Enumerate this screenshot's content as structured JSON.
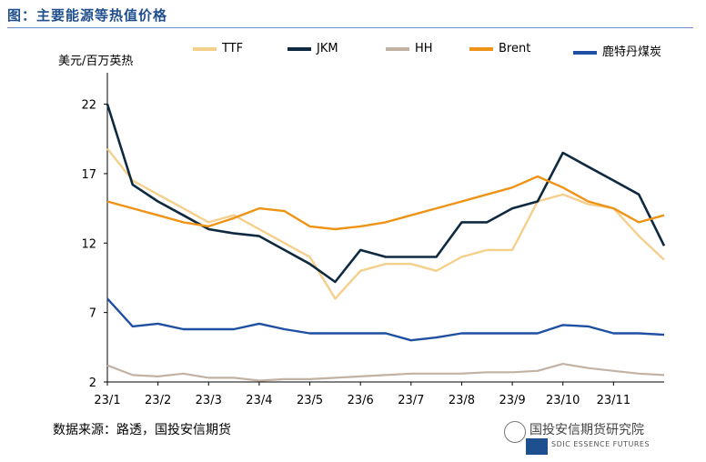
{
  "figure": {
    "title": "图：主要能源等热值价格"
  },
  "source_note": "数据来源：路透，国投安信期货",
  "watermark": {
    "text": "国投安信期货研究院",
    "sub": "SDIC ESSENCE FUTURES",
    "logo_icon": "wechat-icon"
  },
  "chart_data": {
    "type": "line",
    "ylabel": "美元/百万英热",
    "ylim": [
      2,
      24
    ],
    "yticks": [
      2,
      7,
      12,
      17,
      22
    ],
    "x_labels": [
      "23/1",
      "23/2",
      "23/3",
      "23/4",
      "23/5",
      "23/6",
      "23/7",
      "23/8",
      "23/9",
      "23/10",
      "23/11"
    ],
    "x": [
      "23/1",
      "23/1.5",
      "23/2",
      "23/2.5",
      "23/3",
      "23/3.5",
      "23/4",
      "23/4.5",
      "23/5",
      "23/5.5",
      "23/6",
      "23/6.5",
      "23/7",
      "23/7.5",
      "23/8",
      "23/8.5",
      "23/9",
      "23/9.5",
      "23/10",
      "23/10.5",
      "23/11",
      "23/11.5",
      "23/12"
    ],
    "series": [
      {
        "name": "TTF",
        "color": "#f5cf8c",
        "values": [
          18.8,
          16.5,
          15.5,
          14.5,
          13.5,
          14.0,
          13.0,
          12.0,
          11.0,
          8.0,
          10.0,
          10.5,
          10.5,
          10.0,
          11.0,
          11.5,
          11.5,
          15.0,
          15.5,
          14.8,
          14.5,
          12.5,
          10.8
        ]
      },
      {
        "name": "JKM",
        "color": "#0f2a40",
        "values": [
          22.0,
          16.2,
          15.0,
          14.0,
          13.0,
          12.7,
          12.5,
          11.5,
          10.5,
          9.2,
          11.5,
          11.0,
          11.0,
          11.0,
          13.5,
          13.5,
          14.5,
          15.0,
          18.5,
          17.5,
          16.5,
          15.5,
          11.8
        ]
      },
      {
        "name": "HH",
        "color": "#c2b2a3",
        "values": [
          3.2,
          2.5,
          2.4,
          2.6,
          2.3,
          2.3,
          2.1,
          2.2,
          2.2,
          2.3,
          2.4,
          2.5,
          2.6,
          2.6,
          2.6,
          2.7,
          2.7,
          2.8,
          3.3,
          3.0,
          2.8,
          2.6,
          2.5
        ]
      },
      {
        "name": "Brent",
        "color": "#ee9315",
        "values": [
          15.0,
          14.5,
          14.0,
          13.5,
          13.2,
          13.8,
          14.5,
          14.3,
          13.2,
          13.0,
          13.2,
          13.5,
          14.0,
          14.5,
          15.0,
          15.5,
          16.0,
          16.8,
          16.0,
          15.0,
          14.5,
          13.5,
          14.0
        ]
      },
      {
        "name": "鹿特丹煤炭",
        "color": "#1e4fa3",
        "values": [
          8.0,
          6.0,
          6.2,
          5.8,
          5.8,
          5.8,
          6.2,
          5.8,
          5.5,
          5.5,
          5.5,
          5.5,
          5.0,
          5.2,
          5.5,
          5.5,
          5.5,
          5.5,
          6.1,
          6.0,
          5.5,
          5.5,
          5.4
        ]
      }
    ]
  }
}
